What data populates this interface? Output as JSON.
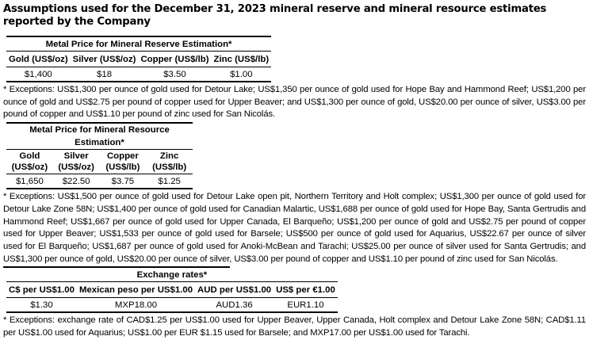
{
  "title": "Assumptions used for the December 31, 2023 mineral reserve and mineral resource estimates reported by the Company",
  "tables": [
    {
      "title": "Metal Price for Mineral Reserve Estimation*",
      "headers": [
        "Gold (US$/oz)",
        "Silver (US$/oz)",
        "Copper (US$/lb)",
        "Zinc (US$/lb)"
      ],
      "values": [
        "$1,400",
        "$18",
        "$3.50",
        "$1.00"
      ],
      "footnote": "* Exceptions: US$1,300 per ounce of gold used for Detour Lake; US$1,350 per ounce of gold used for Hope Bay and Hammond Reef; US$1,200 per ounce of gold and US$2.75 per pound of copper used for Upper Beaver; and US$1,300 per ounce of gold, US$20.00 per ounce of silver, US$3.00 per pound of copper and US$1.10 per pound of zinc used for San Nicolás."
    },
    {
      "title": "Metal Price for Mineral Resource Estimation*",
      "headers": [
        "Gold (US$/oz)",
        "Silver (US$/oz)",
        "Copper (US$/lb)",
        "Zinc (US$/lb)"
      ],
      "values": [
        "$1,650",
        "$22.50",
        "$3.75",
        "$1.25"
      ],
      "footnote": "* Exceptions: US$1,500 per ounce of gold used for Detour Lake open pit, Northern Territory and Holt complex; US$1,300 per ounce of gold used for Detour Lake Zone 58N; US$1,400 per ounce of gold used for Canadian Malartic, US$1,688 per ounce of gold used for Hope Bay, Santa Gertrudis and Hammond Reef; US$1,667 per ounce of gold used for Upper Canada, El Barqueño; US$1,200 per ounce of gold and US$2.75 per pound of copper used for Upper Beaver; US$1,533 per ounce of gold used for Barsele; US$500 per ounce of gold used for Aquarius, US$22.67 per ounce of silver used for El Barqueño; US$1,687 per ounce of gold used for Anoki-McBean and Tarachi; US$25.00 per ounce of silver used for Santa Gertrudis; and US$1,300 per ounce of gold, US$20.00 per ounce of silver, US$3.00 per pound of copper and US$1.10 per pound of zinc used for San Nicolás."
    },
    {
      "title": "Exchange rates*",
      "headers": [
        "C$ per US$1.00",
        "Mexican peso per US$1.00",
        "AUD per US$1.00",
        "US$ per €1.00"
      ],
      "values": [
        "$1.30",
        "MXP18.00",
        "AUD1.36",
        "EUR1.10"
      ],
      "footnote": "* Exceptions: exchange rate of CAD$1.25 per US$1.00 used for Upper Beaver, Upper Canada, Holt complex and Detour Lake Zone 58N; CAD$1.11 per US$1.00 used for Aquarius; US$1.00 per EUR $1.15 used for Barsele; and MXP17.00 per US$1.00 used for Tarachi."
    }
  ]
}
